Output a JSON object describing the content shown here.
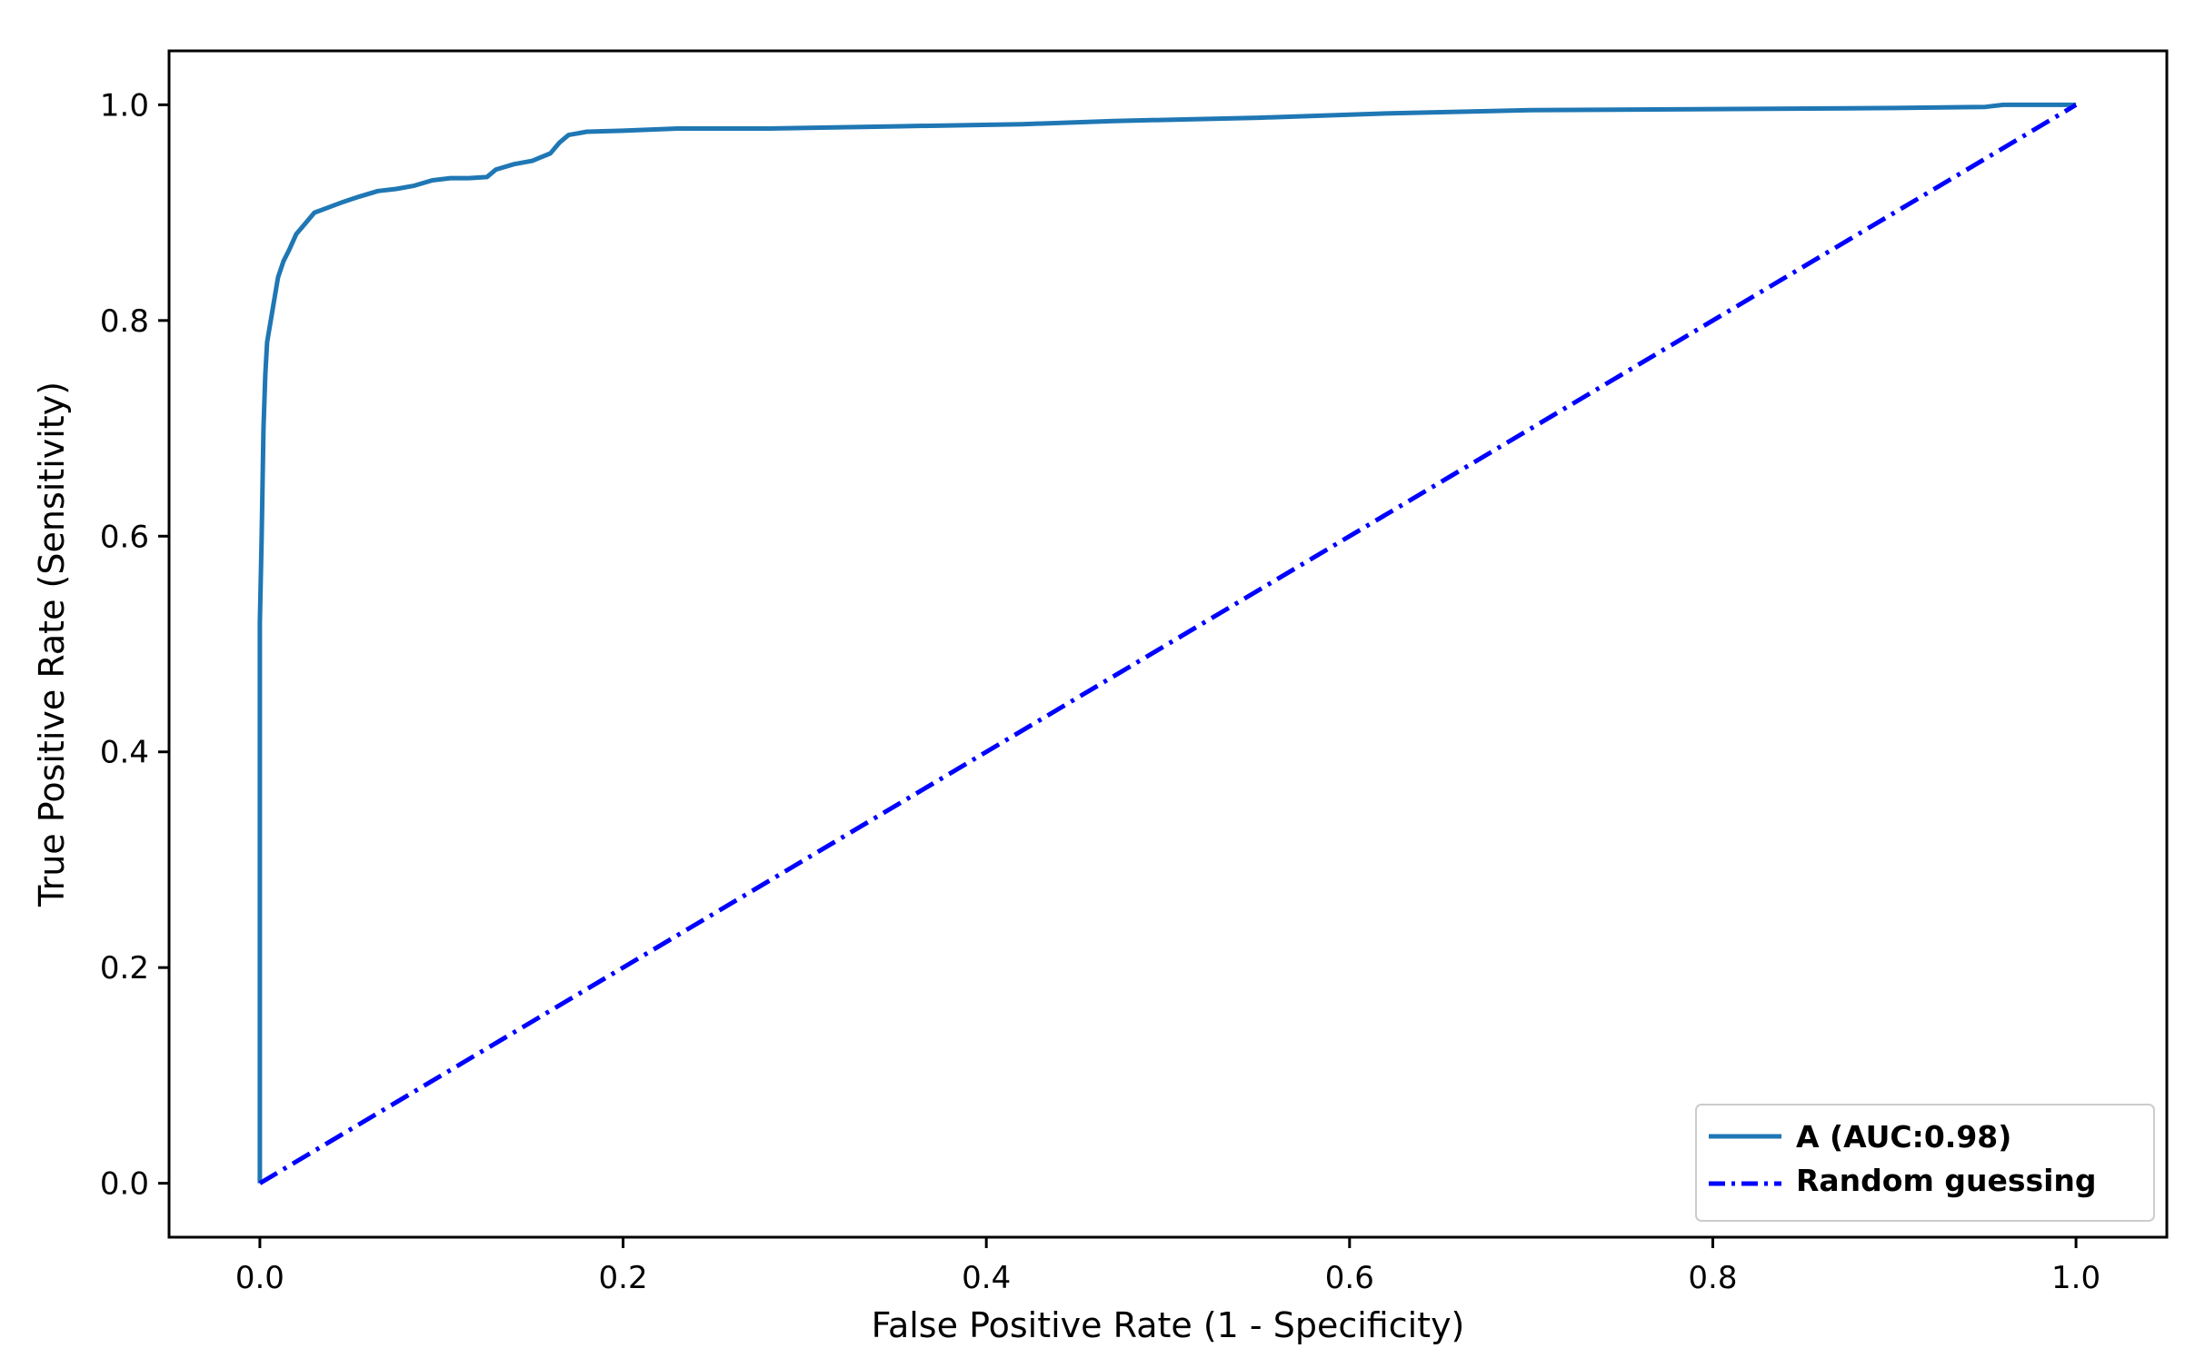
{
  "chart_data": {
    "type": "line",
    "title": "",
    "xlabel": "False Positive Rate (1 - Specificity)",
    "ylabel": "True Positive Rate (Sensitivity)",
    "xlim": [
      -0.05,
      1.05
    ],
    "ylim": [
      -0.05,
      1.05
    ],
    "x_ticks": [
      "0.0",
      "0.2",
      "0.4",
      "0.6",
      "0.8",
      "1.0"
    ],
    "y_ticks": [
      "0.0",
      "0.2",
      "0.4",
      "0.6",
      "0.8",
      "1.0"
    ],
    "grid": false,
    "legend_position": "lower-right",
    "series": [
      {
        "name": "A (AUC:0.98)",
        "color": "#1f77b4",
        "line_style": "solid",
        "x": [
          0.0,
          0.0,
          0.0,
          0.001,
          0.002,
          0.003,
          0.004,
          0.006,
          0.008,
          0.01,
          0.013,
          0.016,
          0.02,
          0.025,
          0.03,
          0.038,
          0.046,
          0.055,
          0.065,
          0.075,
          0.085,
          0.095,
          0.105,
          0.115,
          0.125,
          0.13,
          0.14,
          0.15,
          0.16,
          0.165,
          0.17,
          0.18,
          0.2,
          0.23,
          0.28,
          0.35,
          0.42,
          0.47,
          0.55,
          0.62,
          0.7,
          0.8,
          0.9,
          0.95,
          0.96,
          1.0
        ],
        "y": [
          0.0,
          0.45,
          0.52,
          0.6,
          0.7,
          0.75,
          0.78,
          0.8,
          0.82,
          0.84,
          0.855,
          0.865,
          0.88,
          0.89,
          0.9,
          0.905,
          0.91,
          0.915,
          0.92,
          0.922,
          0.925,
          0.93,
          0.932,
          0.932,
          0.933,
          0.94,
          0.945,
          0.948,
          0.955,
          0.965,
          0.972,
          0.975,
          0.976,
          0.978,
          0.978,
          0.98,
          0.982,
          0.985,
          0.988,
          0.992,
          0.995,
          0.996,
          0.997,
          0.998,
          1.0,
          1.0
        ]
      },
      {
        "name": "Random guessing",
        "color": "#0000ff",
        "line_style": "dashdot",
        "x": [
          0.0,
          1.0
        ],
        "y": [
          0.0,
          1.0
        ]
      }
    ]
  }
}
